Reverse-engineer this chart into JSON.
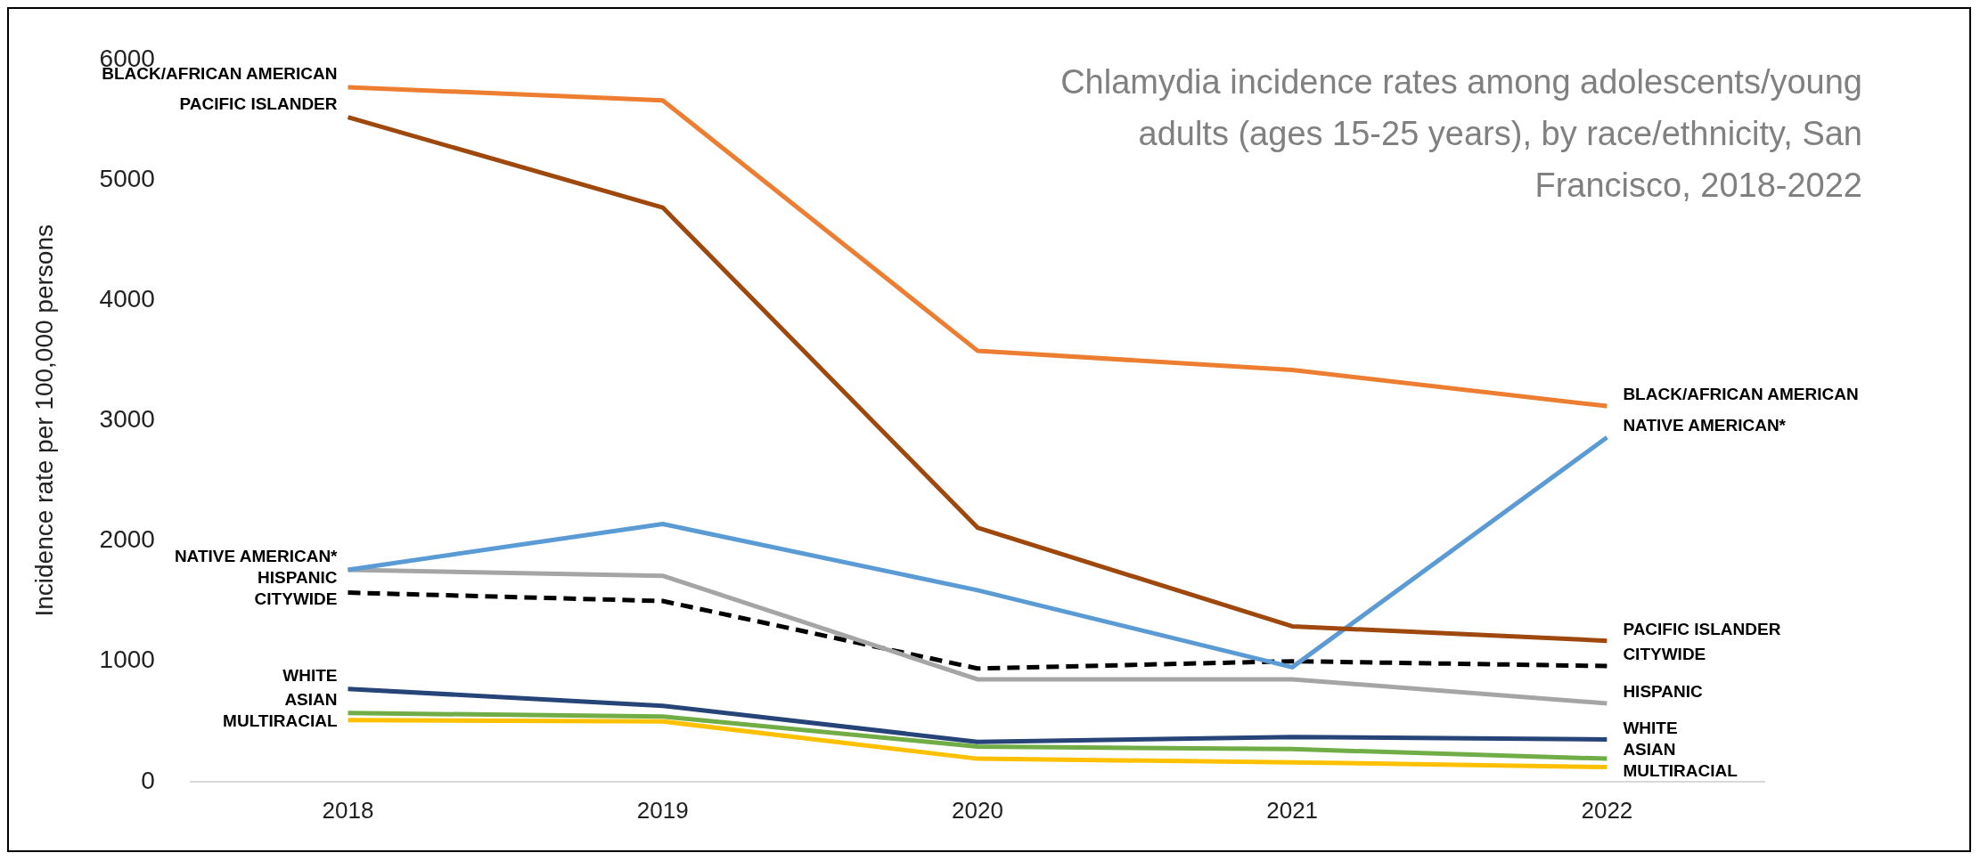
{
  "chart_data": {
    "type": "line",
    "title": "Chlamydia incidence rates among adolescents/young adults (ages 15-25 years), by race/ethnicity, San Francisco, 2018-2022",
    "ylabel": "Incidence rate per 100,000 persons",
    "categories": [
      "2018",
      "2019",
      "2020",
      "2021",
      "2022"
    ],
    "ylim": [
      0,
      6000
    ],
    "yticks": [
      0,
      1000,
      2000,
      3000,
      4000,
      5000,
      6000
    ],
    "grid": false,
    "legend": false,
    "marker": "none",
    "series": [
      {
        "name": "BLACK/AFRICAN AMERICAN",
        "color": "#ed7d31",
        "values": [
          5770,
          5660,
          3580,
          3420,
          3120
        ]
      },
      {
        "name": "PACIFIC ISLANDER",
        "color": "#9e480e",
        "values": [
          5520,
          4770,
          2110,
          1290,
          1170
        ]
      },
      {
        "name": "NATIVE AMERICAN*",
        "color": "#5b9bd5",
        "values": [
          1760,
          2140,
          1590,
          950,
          2860
        ]
      },
      {
        "name": "HISPANIC",
        "color": "#a5a5a5",
        "values": [
          1760,
          1710,
          850,
          850,
          650
        ]
      },
      {
        "name": "CITYWIDE",
        "color": "#000000",
        "line_style": "dashed",
        "values": [
          1570,
          1500,
          940,
          1000,
          960
        ]
      },
      {
        "name": "WHITE",
        "color": "#264478",
        "values": [
          770,
          630,
          330,
          370,
          350
        ]
      },
      {
        "name": "ASIAN",
        "color": "#70ad47",
        "values": [
          570,
          540,
          290,
          270,
          190
        ]
      },
      {
        "name": "MULTIRACIAL",
        "color": "#ffc000",
        "values": [
          510,
          500,
          190,
          160,
          120
        ]
      }
    ]
  }
}
